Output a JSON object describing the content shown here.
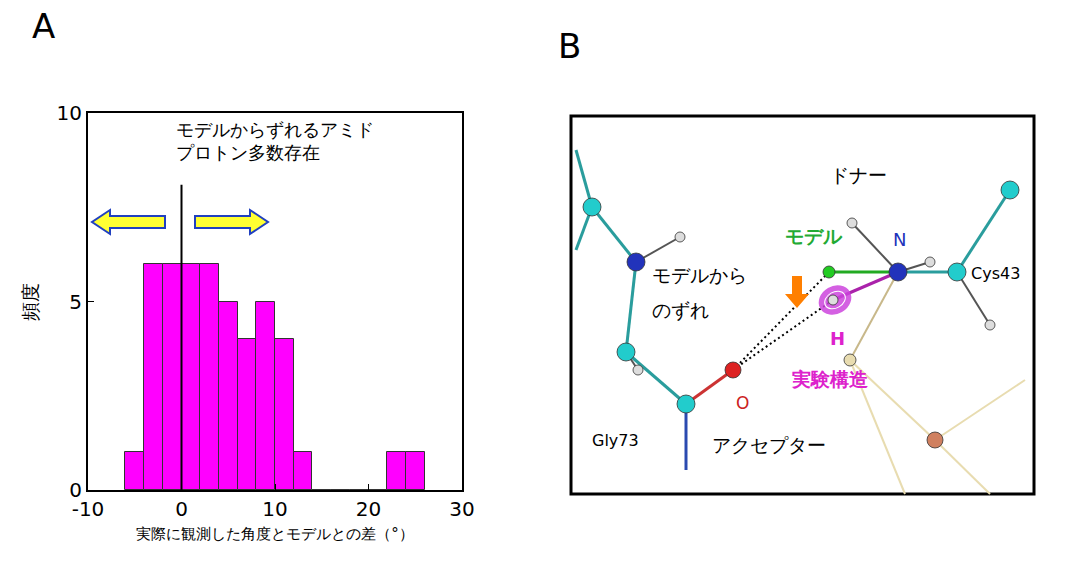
{
  "chart_data": {
    "type": "histogram",
    "panel_label": "A",
    "annotation": [
      "モデルからずれるアミド",
      "プロトン多数存在"
    ],
    "x_label": "実際に観測した角度とモデルとの差（°）",
    "y_label": "頻度",
    "bins": [
      -6,
      -4,
      -2,
      0,
      2,
      4,
      6,
      8,
      10,
      12,
      14,
      16,
      18,
      20,
      22,
      24,
      26
    ],
    "counts": [
      1,
      6,
      6,
      6,
      6,
      5,
      4,
      5,
      4,
      1,
      0,
      0,
      0,
      0,
      1,
      1
    ],
    "color": "#ff00ff",
    "reference_x": 0,
    "xlim": [
      -10,
      30
    ],
    "xticks": [
      -10,
      0,
      10,
      20,
      30
    ],
    "ylim": [
      0,
      10
    ],
    "yticks": [
      0,
      5,
      10
    ],
    "grid": false
  },
  "diagram": {
    "panel_label": "B",
    "labels": {
      "donor": "ドナー",
      "model": "モデル",
      "nitrogen": "N",
      "deviation": [
        "モデルから",
        "のずれ"
      ],
      "cys": "Cys43",
      "hydrogen": "H",
      "experimental": "実験構造",
      "oxygen": "O",
      "gly": "Gly73",
      "acceptor": "アクセプター"
    }
  }
}
